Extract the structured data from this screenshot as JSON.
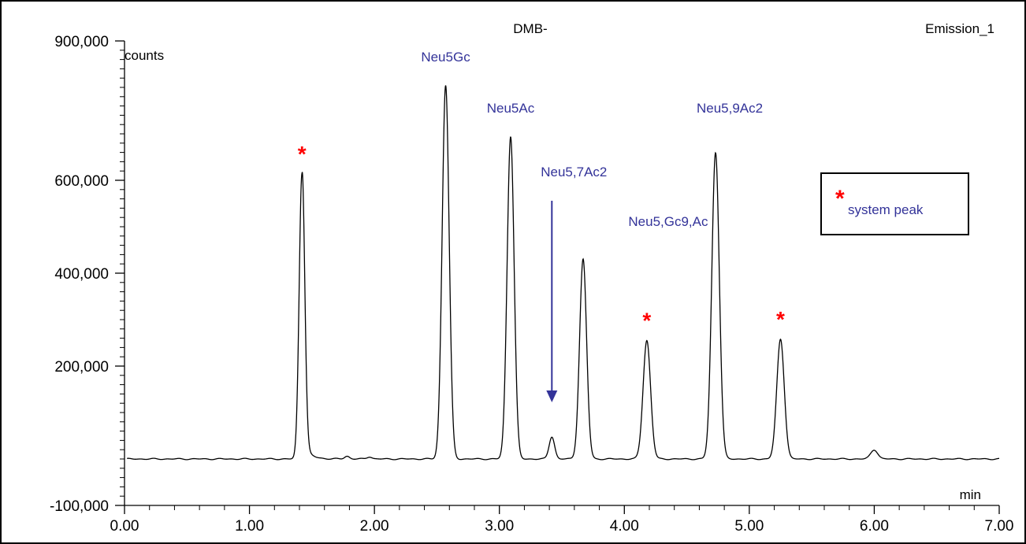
{
  "chart_data": {
    "type": "line",
    "title": "DMB-",
    "channel_label": "Emission_1",
    "xlabel": "min",
    "ylabel": "counts",
    "xlim": [
      0.0,
      7.0
    ],
    "ylim": [
      -100000,
      900000
    ],
    "x_ticks": [
      "0.00",
      "1.00",
      "2.00",
      "3.00",
      "4.00",
      "5.00",
      "6.00",
      "7.00"
    ],
    "y_ticks": [
      {
        "value": 900000,
        "label": "900,000"
      },
      {
        "value": 600000,
        "label": "600,000"
      },
      {
        "value": 400000,
        "label": "400,000"
      },
      {
        "value": 200000,
        "label": "200,000"
      },
      {
        "value": -100000,
        "label": "-100,000"
      }
    ],
    "grid": false,
    "baseline": 0,
    "line_color": "#000000",
    "peaks": [
      {
        "time": 1.42,
        "height": 615000,
        "width": 0.022,
        "tail": 0.05,
        "tail_height": 40000
      },
      {
        "time": 1.78,
        "height": 6000,
        "width": 0.02
      },
      {
        "time": 1.96,
        "height": 5000,
        "width": 0.02
      },
      {
        "time": 2.57,
        "height": 805000,
        "width": 0.028
      },
      {
        "time": 3.09,
        "height": 695000,
        "width": 0.028
      },
      {
        "time": 3.42,
        "height": 48000,
        "width": 0.022
      },
      {
        "time": 3.67,
        "height": 430000,
        "width": 0.028
      },
      {
        "time": 4.18,
        "height": 255000,
        "width": 0.03
      },
      {
        "time": 4.73,
        "height": 660000,
        "width": 0.03
      },
      {
        "time": 5.25,
        "height": 258000,
        "width": 0.03
      },
      {
        "time": 6.0,
        "height": 20000,
        "width": 0.028
      }
    ],
    "annotations": [
      {
        "text": "Neu5Gc",
        "time": 2.57
      },
      {
        "text": "Neu5Ac",
        "time": 3.09
      },
      {
        "text": "Neu5,7Ac2",
        "time": 3.42
      },
      {
        "text": "Neu5,Gc9,Ac",
        "time": 3.67
      },
      {
        "text": "Neu5,9Ac2",
        "time": 4.73
      }
    ],
    "annotation_color": "#333399",
    "system_peak_marker": "*",
    "system_peak_color": "#ff0000",
    "system_peaks": [
      1.42,
      4.18,
      5.25
    ],
    "legend": {
      "marker": "*",
      "text": "system peak",
      "placement": "right"
    }
  }
}
